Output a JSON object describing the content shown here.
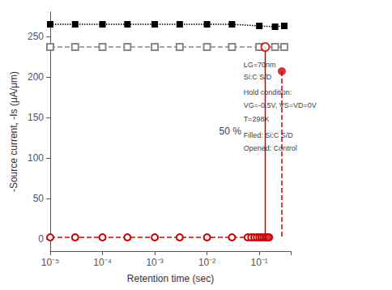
{
  "chart_data": {
    "type": "line",
    "xlabel": "Retention time (sec)",
    "ylabel": "-Source current, -Is (μA/μm)",
    "log": "x",
    "xlim": [
      1e-05,
      0.4
    ],
    "xticks": [
      {
        "value": 1e-05,
        "label": "10⁻⁵"
      },
      {
        "value": 0.0001,
        "label": "10⁻⁴"
      },
      {
        "value": 0.001,
        "label": "10⁻³"
      },
      {
        "value": 0.01,
        "label": "10⁻²"
      },
      {
        "value": 0.1,
        "label": "10⁻¹"
      }
    ],
    "ylim": [
      -15,
      280
    ],
    "yticks": [
      0,
      50,
      100,
      150,
      200,
      250
    ],
    "grid": false,
    "series": [
      {
        "x": [
          1e-05,
          3e-05,
          0.0001,
          0.0003,
          0.001,
          0.003,
          0.01,
          0.03,
          0.1,
          0.2,
          0.3
        ],
        "values": [
          265,
          265,
          265,
          265,
          265,
          265,
          265,
          265,
          263,
          262,
          263
        ],
        "color": "#000000",
        "marker": "square",
        "line_style": "dotted"
      },
      {
        "x": [
          1e-05,
          3e-05,
          0.0001,
          0.0003,
          0.001,
          0.003,
          0.01,
          0.03,
          0.1,
          0.2,
          0.3
        ],
        "values": [
          237,
          237,
          237,
          237,
          237,
          237,
          237,
          237,
          237,
          237,
          237
        ],
        "color": "#888888",
        "marker": "hollow_square",
        "line_style": "dashed"
      },
      {
        "x": [
          1e-05,
          3e-05,
          0.0001,
          0.0003,
          0.001,
          0.003,
          0.01,
          0.03,
          0.06,
          0.07,
          0.08,
          0.09,
          0.1,
          0.11,
          0.12,
          0.13,
          0.14,
          0.15
        ],
        "values": [
          2,
          2,
          2,
          2,
          2,
          2,
          2,
          2,
          2,
          2,
          2,
          2,
          2,
          2,
          2,
          2,
          2,
          2
        ],
        "color": "#cc0000",
        "marker": "hollow_circle",
        "line_style": "dashed"
      },
      {
        "type": "scatter",
        "x": [
          0.155
        ],
        "values": [
          2
        ],
        "color": "#cc0000",
        "marker": "circle"
      },
      {
        "type": "scatter",
        "x": [
          0.27
        ],
        "values": [
          207
        ],
        "color": "#cc0000",
        "marker": "circle"
      },
      {
        "type": "scatter",
        "x": [
          0.13
        ],
        "values": [
          237
        ],
        "color": "#cc0000",
        "marker": "hollow_circle"
      },
      {
        "x": [
          0.13,
          0.13
        ],
        "values": [
          237,
          2
        ],
        "color": "#cc0000",
        "marker": "none",
        "line_style": "solid"
      },
      {
        "x": [
          0.27,
          0.27
        ],
        "values": [
          207,
          2
        ],
        "color": "#cc0000",
        "marker": "none",
        "line_style": "dashed"
      }
    ],
    "annotations": [
      {
        "text": "50 %",
        "x": 0.052,
        "y": 127
      },
      {
        "text": "LG=70nm",
        "x": 0.05,
        "y": 220
      },
      {
        "text": "Si:C S/D",
        "x": 0.05,
        "y": 205
      },
      {
        "text": "Hold condition:",
        "x": 0.05,
        "y": 186
      },
      {
        "text": "VG=-0.5V, VS=VD=0V",
        "x": 0.05,
        "y": 170
      },
      {
        "text": "T=298K",
        "x": 0.05,
        "y": 153
      },
      {
        "text": "Filled: Si:C S/D",
        "x": 0.05,
        "y": 133
      },
      {
        "text": "Opened: Control",
        "x": 0.05,
        "y": 117
      }
    ]
  }
}
